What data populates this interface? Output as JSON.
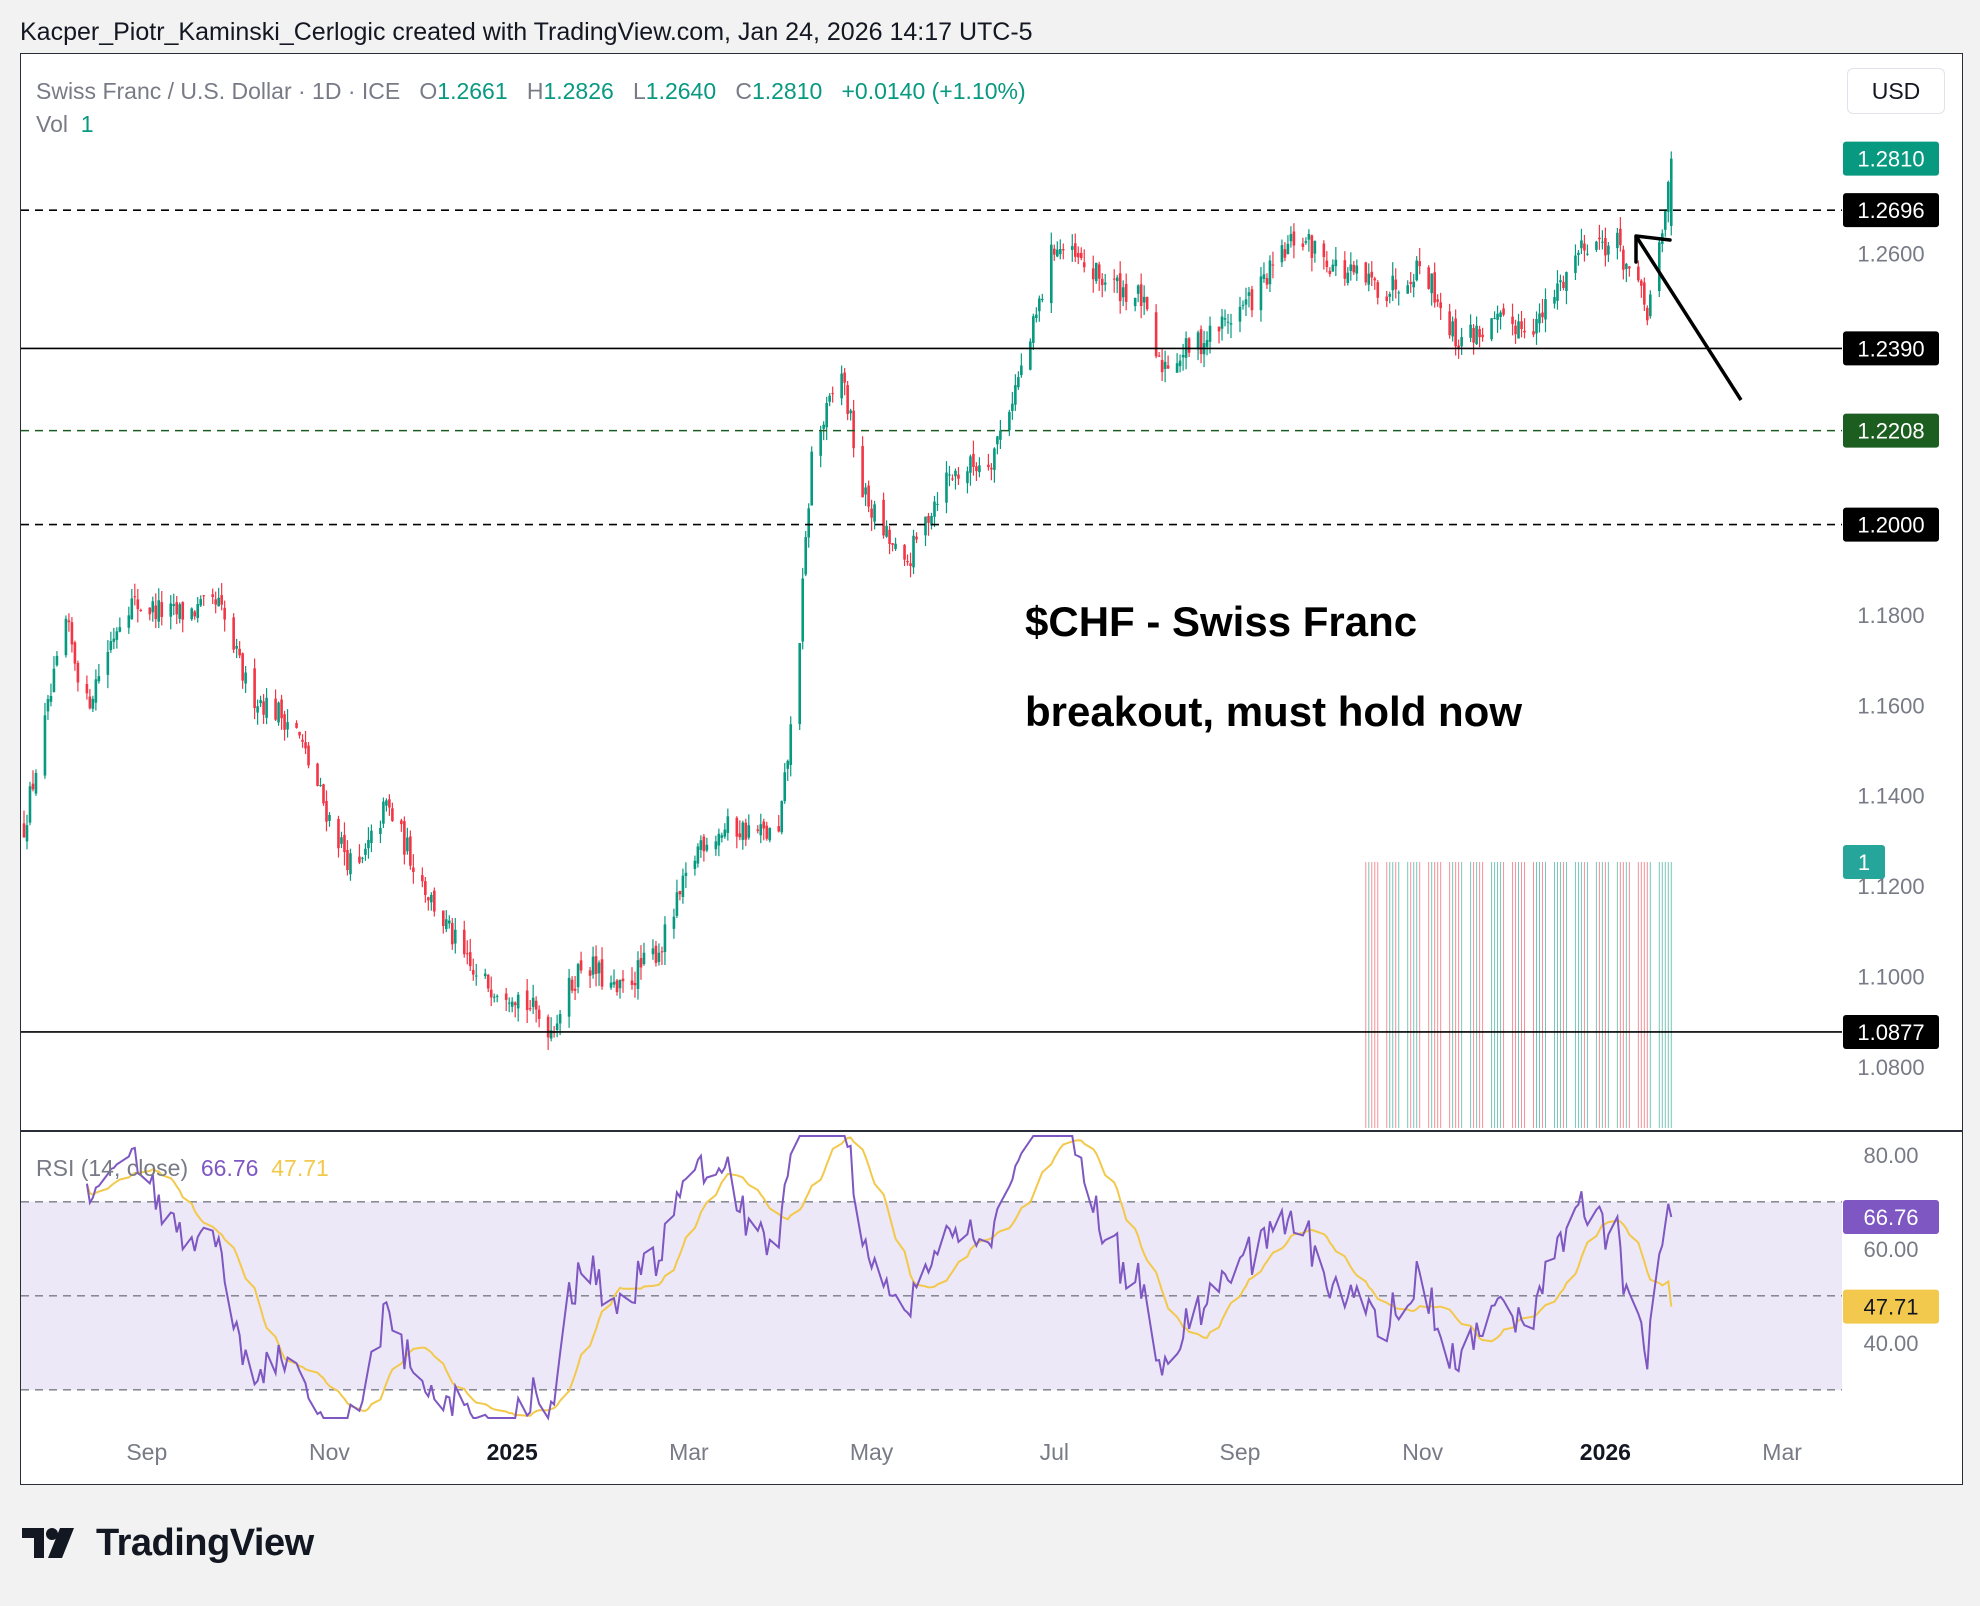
{
  "header": {
    "caption": "Kacper_Piotr_Kaminski_Cerlogic created with TradingView.com, Jan 24, 2026 14:17 UTC-5"
  },
  "legend": {
    "symbol": "Swiss Franc / U.S. Dollar · 1D · ICE",
    "o_label": "O",
    "o_value": "1.2661",
    "h_label": "H",
    "h_value": "1.2826",
    "l_label": "L",
    "l_value": "1.2640",
    "c_label": "C",
    "c_value": "1.2810",
    "change": "+0.0140 (+1.10%)",
    "vol_label": "Vol",
    "vol_value": "1"
  },
  "currency_button": "USD",
  "annotation": {
    "line1": "$CHF - Swiss Franc",
    "line2": "breakout, must hold now"
  },
  "rsi_legend": {
    "label": "RSI (14, close)",
    "rsi_value": "66.76",
    "ma_value": "47.71"
  },
  "branding": {
    "logo_text": "TradingView"
  },
  "colors": {
    "up": "#089981",
    "down": "#f23645",
    "rsi": "#7e57c2",
    "rsi_ma": "#f2c94c",
    "rsi_band": "#ede8f8",
    "level_green": "#1b5e20",
    "price_label_black": "#000000"
  },
  "chart_data": [
    {
      "type": "candlestick",
      "symbol": "CHFUSD",
      "timeframe": "1D",
      "ylim": [
        1.066,
        1.29
      ],
      "x_range": [
        "2024-07-21",
        "2026-03-21"
      ],
      "x_ticks": [
        {
          "date": "2024-09-01",
          "label": "Sep",
          "bold": false
        },
        {
          "date": "2024-11-01",
          "label": "Nov",
          "bold": false
        },
        {
          "date": "2025-01-01",
          "label": "2025",
          "bold": true
        },
        {
          "date": "2025-03-01",
          "label": "Mar",
          "bold": false
        },
        {
          "date": "2025-05-01",
          "label": "May",
          "bold": false
        },
        {
          "date": "2025-07-01",
          "label": "Jul",
          "bold": false
        },
        {
          "date": "2025-09-01",
          "label": "Sep",
          "bold": false
        },
        {
          "date": "2025-11-01",
          "label": "Nov",
          "bold": false
        },
        {
          "date": "2026-01-01",
          "label": "2026",
          "bold": true
        },
        {
          "date": "2026-03-01",
          "label": "Mar",
          "bold": false
        }
      ],
      "y_ticks": [
        "1.2600",
        "1.1800",
        "1.1600",
        "1.1400",
        "1.1200",
        "1.1000",
        "1.0800"
      ],
      "horizontal_levels": [
        {
          "value": 1.2696,
          "label": "1.2696",
          "style": "dashed",
          "color": "#000000"
        },
        {
          "value": 1.239,
          "label": "1.2390",
          "style": "solid",
          "color": "#000000"
        },
        {
          "value": 1.2208,
          "label": "1.2208",
          "style": "dashed-green",
          "color": "#1b5e20"
        },
        {
          "value": 1.2,
          "label": "1.2000",
          "style": "dashed",
          "color": "#000000"
        },
        {
          "value": 1.0877,
          "label": "1.0877",
          "style": "solid",
          "color": "#000000"
        }
      ],
      "last_price": {
        "value": 1.281,
        "label": "1.2810"
      },
      "volume_badge": "1",
      "waypoints": [
        [
          "2024-07-21",
          1.13
        ],
        [
          "2024-08-05",
          1.178
        ],
        [
          "2024-08-12",
          1.16
        ],
        [
          "2024-08-25",
          1.183
        ],
        [
          "2024-09-10",
          1.18
        ],
        [
          "2024-09-25",
          1.182
        ],
        [
          "2024-10-05",
          1.163
        ],
        [
          "2024-10-20",
          1.156
        ],
        [
          "2024-11-01",
          1.135
        ],
        [
          "2024-11-10",
          1.122
        ],
        [
          "2024-11-20",
          1.138
        ],
        [
          "2024-12-05",
          1.117
        ],
        [
          "2024-12-20",
          1.099
        ],
        [
          "2025-01-01",
          1.097
        ],
        [
          "2025-01-14",
          1.0885
        ],
        [
          "2025-01-25",
          1.104
        ],
        [
          "2025-02-05",
          1.096
        ],
        [
          "2025-02-20",
          1.107
        ],
        [
          "2025-03-05",
          1.13
        ],
        [
          "2025-03-15",
          1.133
        ],
        [
          "2025-03-31",
          1.131
        ],
        [
          "2025-04-06",
          1.166
        ],
        [
          "2025-04-11",
          1.215
        ],
        [
          "2025-04-21",
          1.234
        ],
        [
          "2025-04-28",
          1.207
        ],
        [
          "2025-05-12",
          1.19
        ],
        [
          "2025-05-25",
          1.21
        ],
        [
          "2025-06-10",
          1.215
        ],
        [
          "2025-06-22",
          1.238
        ],
        [
          "2025-07-01",
          1.262
        ],
        [
          "2025-07-15",
          1.255
        ],
        [
          "2025-07-30",
          1.25
        ],
        [
          "2025-08-05",
          1.235
        ],
        [
          "2025-08-20",
          1.241
        ],
        [
          "2025-09-05",
          1.25
        ],
        [
          "2025-09-20",
          1.264
        ],
        [
          "2025-10-05",
          1.256
        ],
        [
          "2025-10-20",
          1.252
        ],
        [
          "2025-11-01",
          1.258
        ],
        [
          "2025-11-12",
          1.241
        ],
        [
          "2025-11-25",
          1.244
        ],
        [
          "2025-12-10",
          1.245
        ],
        [
          "2025-12-25",
          1.263
        ],
        [
          "2026-01-05",
          1.262
        ],
        [
          "2026-01-15",
          1.247
        ],
        [
          "2026-01-20",
          1.263
        ],
        [
          "2026-01-23",
          1.281
        ]
      ],
      "volume": {
        "value": 1,
        "note": "tick volume shown as thin bars, each 1"
      }
    },
    {
      "type": "line",
      "title": "RSI (14, close)",
      "ylim": [
        24,
        84
      ],
      "y_ticks": [
        "80.00",
        "60.00",
        "40.00"
      ],
      "bands": {
        "upper": 70,
        "middle": 50,
        "lower": 30
      },
      "series": [
        {
          "name": "RSI",
          "color": "#7e57c2",
          "last": 66.76
        },
        {
          "name": "RSI-based MA",
          "color": "#f2c94c",
          "last": 47.71
        }
      ]
    }
  ]
}
